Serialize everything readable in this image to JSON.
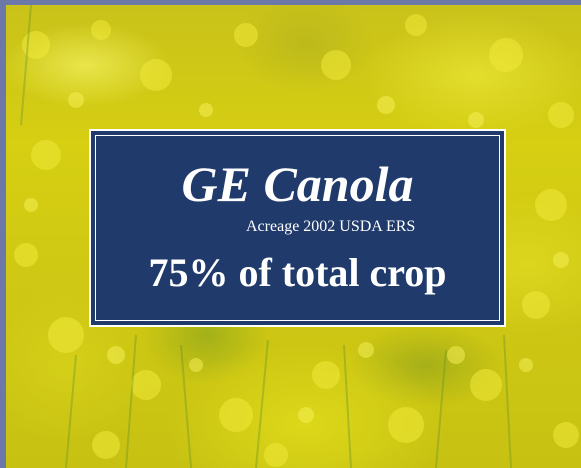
{
  "slide": {
    "title": "GE Canola",
    "subtitle": "Acreage 2002 USDA ERS",
    "headline": "75% of total crop"
  },
  "background_image": {
    "subject": "canola-flower-field",
    "dominant_color": "#d2cb16",
    "frame_color": "#6b78a8"
  },
  "sign_colors": {
    "fill": "#1f3a6b",
    "text": "#ffffff"
  }
}
